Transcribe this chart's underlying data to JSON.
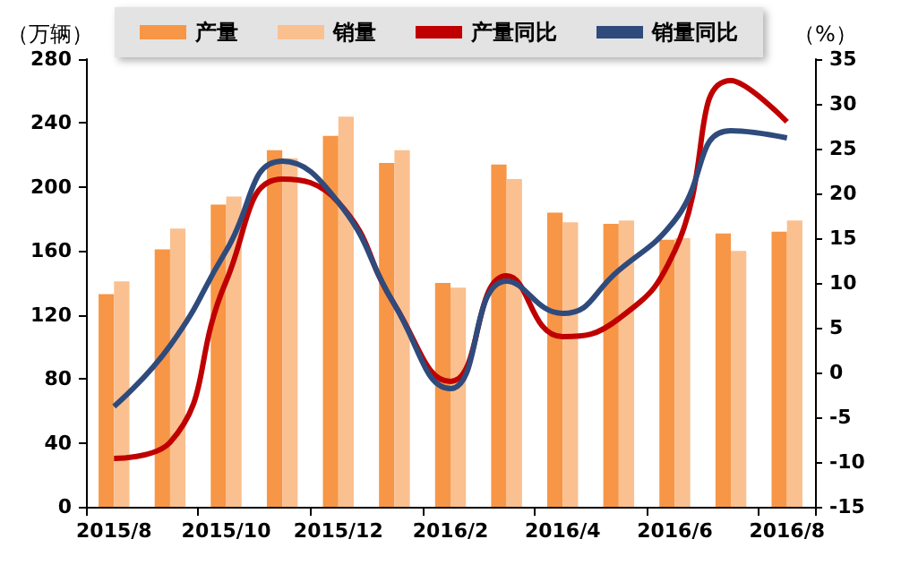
{
  "chart_data": {
    "type": "bar",
    "ylabel": "（万辆）",
    "y2label": "（%）",
    "categories": [
      "2015/8",
      null,
      "2015/10",
      null,
      "2015/12",
      null,
      "2016/2",
      null,
      "2016/4",
      null,
      "2016/6",
      null,
      "2016/8"
    ],
    "series": [
      {
        "name": "产量",
        "color": "#f79646",
        "values": [
          133,
          161,
          189,
          223,
          232,
          215,
          140,
          214,
          184,
          177,
          167,
          171,
          172
        ]
      },
      {
        "name": "销量",
        "color": "#fac090",
        "values": [
          141,
          174,
          194,
          218,
          244,
          223,
          137,
          205,
          178,
          179,
          168,
          160,
          179
        ]
      },
      {
        "name": "产量同比",
        "type": "line",
        "axis": "y2",
        "color": "#c00000",
        "values": [
          -9.6,
          -7.8,
          10.2,
          21.6,
          19,
          7.6,
          -1,
          10.8,
          4,
          6,
          13.6,
          32.6,
          28
        ]
      },
      {
        "name": "销量同比",
        "type": "line",
        "axis": "y2",
        "color": "#2f4b7c",
        "values": [
          -3.8,
          3,
          13.6,
          23.6,
          19,
          7.6,
          -1.8,
          10.2,
          6.6,
          11.4,
          17,
          27,
          26.2
        ]
      }
    ],
    "ylim": [
      0,
      280
    ],
    "yticks": [
      0,
      40,
      80,
      120,
      160,
      200,
      240,
      280
    ],
    "y2lim": [
      -15,
      35
    ],
    "y2ticks": [
      -15,
      -10,
      -5,
      0,
      5,
      10,
      15,
      20,
      25,
      30,
      35
    ],
    "grid": false,
    "legend": "top",
    "marker": "none"
  }
}
